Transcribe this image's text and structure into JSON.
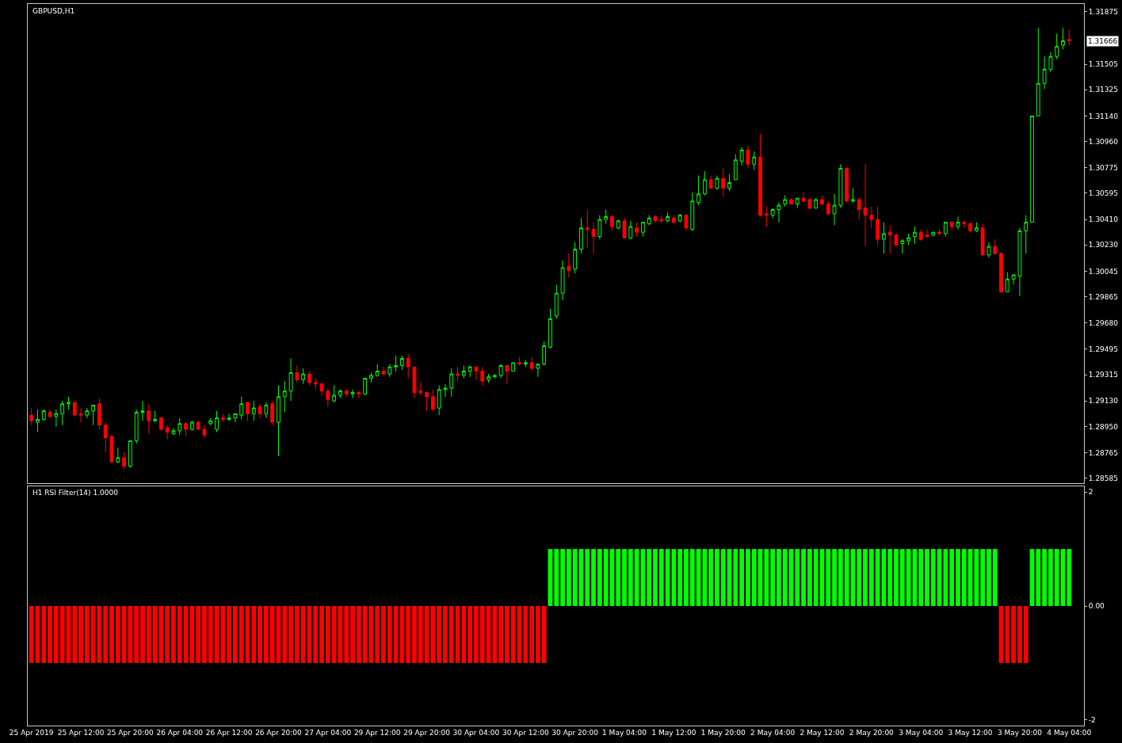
{
  "chart_data": [
    {
      "type": "candlestick",
      "title": "GBPUSD,H1",
      "tick_labels": "y",
      "categories": [
        null,
        null,
        null,
        null,
        null,
        null,
        null,
        null,
        null,
        null,
        null,
        null,
        null,
        null,
        null,
        null,
        null,
        null,
        null,
        null,
        null,
        null,
        null,
        null,
        null,
        null,
        null,
        null,
        null,
        null,
        null,
        null,
        null,
        null,
        null,
        null,
        null,
        null,
        null,
        null,
        null,
        null,
        null,
        null,
        null,
        null,
        null,
        null,
        null,
        null,
        null,
        null,
        null,
        null,
        null,
        null,
        null,
        null,
        null,
        null,
        null,
        null,
        null,
        null,
        null,
        null,
        null,
        null,
        null,
        null,
        null,
        null,
        null,
        null,
        null,
        null,
        null,
        null,
        null,
        null,
        null,
        null,
        null,
        null,
        null,
        null,
        null,
        null,
        null,
        null,
        null,
        null,
        null,
        null,
        null,
        null,
        null,
        null,
        null,
        null,
        null,
        null,
        null,
        null,
        null,
        null,
        null,
        null,
        null,
        null,
        null,
        null,
        null,
        null,
        null,
        null,
        null,
        null,
        null,
        null,
        null,
        null,
        null,
        null,
        null,
        null,
        null,
        null,
        null,
        null,
        null,
        null,
        null,
        null,
        null,
        null,
        null,
        null,
        null,
        null,
        null,
        null,
        null,
        null,
        null,
        null,
        null,
        null,
        null,
        null,
        null,
        null,
        null,
        null,
        null,
        null,
        null,
        null,
        null,
        null,
        null,
        null,
        null,
        null,
        null,
        null,
        null,
        null,
        null
      ],
      "ohlc": [
        [
          1.2903,
          1.2908,
          1.2896,
          1.2899
        ],
        [
          1.2898,
          1.2907,
          1.2891,
          1.29
        ],
        [
          1.29,
          1.2907,
          1.2899,
          1.2906
        ],
        [
          1.2905,
          1.2907,
          1.2901,
          1.2902
        ],
        [
          1.2902,
          1.2907,
          1.2895,
          1.2904
        ],
        [
          1.2904,
          1.2913,
          1.2896,
          1.2911
        ],
        [
          1.2911,
          1.2916,
          1.2907,
          1.2912
        ],
        [
          1.2912,
          1.2912,
          1.2902,
          1.2903
        ],
        [
          1.2904,
          1.2908,
          1.2898,
          1.2903
        ],
        [
          1.2903,
          1.2908,
          1.2901,
          1.2906
        ],
        [
          1.2906,
          1.291,
          1.2896,
          1.291
        ],
        [
          1.2911,
          1.2915,
          1.2893,
          1.2896
        ],
        [
          1.2896,
          1.2898,
          1.2877,
          1.2887
        ],
        [
          1.2888,
          1.2889,
          1.287,
          1.287
        ],
        [
          1.287,
          1.288,
          1.2869,
          1.2873
        ],
        [
          1.2873,
          1.2877,
          1.2865,
          1.2867
        ],
        [
          1.2867,
          1.2885,
          1.2866,
          1.2885
        ],
        [
          1.2885,
          1.2907,
          1.2883,
          1.2905
        ],
        [
          1.2905,
          1.2913,
          1.2899,
          1.2906
        ],
        [
          1.2906,
          1.2911,
          1.289,
          1.2899
        ],
        [
          1.2899,
          1.2906,
          1.2898,
          1.29
        ],
        [
          1.2901,
          1.2902,
          1.2892,
          1.2893
        ],
        [
          1.2894,
          1.2896,
          1.2886,
          1.2891
        ],
        [
          1.289,
          1.2894,
          1.2889,
          1.2892
        ],
        [
          1.2892,
          1.2901,
          1.2889,
          1.2897
        ],
        [
          1.2897,
          1.2898,
          1.2888,
          1.2893
        ],
        [
          1.2893,
          1.2899,
          1.2892,
          1.2898
        ],
        [
          1.2898,
          1.2899,
          1.2893,
          1.2893
        ],
        [
          1.2893,
          1.2896,
          1.2887,
          1.2889
        ],
        [
          1.2897,
          1.2901,
          1.2896,
          1.2899
        ],
        [
          1.2893,
          1.2906,
          1.2891,
          1.2901
        ],
        [
          1.2901,
          1.2904,
          1.2898,
          1.29
        ],
        [
          1.29,
          1.2904,
          1.2899,
          1.2901
        ],
        [
          1.2901,
          1.2904,
          1.2898,
          1.2904
        ],
        [
          1.2903,
          1.2916,
          1.29,
          1.2911
        ],
        [
          1.2912,
          1.2912,
          1.2899,
          1.2904
        ],
        [
          1.2904,
          1.2913,
          1.2899,
          1.2908
        ],
        [
          1.2909,
          1.2911,
          1.2901,
          1.2904
        ],
        [
          1.2904,
          1.2912,
          1.2901,
          1.291
        ],
        [
          1.2911,
          1.2913,
          1.2896,
          1.2898
        ],
        [
          1.2898,
          1.2924,
          1.2874,
          1.2916
        ],
        [
          1.2916,
          1.2927,
          1.2905,
          1.292
        ],
        [
          1.292,
          1.2943,
          1.2913,
          1.2933
        ],
        [
          1.2933,
          1.2938,
          1.2926,
          1.2928
        ],
        [
          1.2928,
          1.2936,
          1.2925,
          1.2932
        ],
        [
          1.2932,
          1.2934,
          1.2924,
          1.2926
        ],
        [
          1.2926,
          1.2929,
          1.2921,
          1.2925
        ],
        [
          1.2925,
          1.2926,
          1.2917,
          1.292
        ],
        [
          1.292,
          1.2922,
          1.2909,
          1.2914
        ],
        [
          1.2913,
          1.2924,
          1.2912,
          1.2917
        ],
        [
          1.2917,
          1.2921,
          1.2915,
          1.292
        ],
        [
          1.292,
          1.2921,
          1.2916,
          1.2918
        ],
        [
          1.2918,
          1.2921,
          1.2915,
          1.2919
        ],
        [
          1.2919,
          1.292,
          1.2915,
          1.2918
        ],
        [
          1.2918,
          1.2929,
          1.2917,
          1.2929
        ],
        [
          1.2929,
          1.2933,
          1.2926,
          1.2931
        ],
        [
          1.2931,
          1.2939,
          1.293,
          1.2934
        ],
        [
          1.2934,
          1.2937,
          1.2931,
          1.2932
        ],
        [
          1.2932,
          1.2939,
          1.293,
          1.2937
        ],
        [
          1.2937,
          1.2945,
          1.2934,
          1.2938
        ],
        [
          1.2938,
          1.2945,
          1.2935,
          1.2943
        ],
        [
          1.2943,
          1.2946,
          1.2929,
          1.2937
        ],
        [
          1.2937,
          1.2937,
          1.2915,
          1.2919
        ],
        [
          1.292,
          1.2926,
          1.2917,
          1.2919
        ],
        [
          1.2919,
          1.2919,
          1.2906,
          1.2916
        ],
        [
          1.2916,
          1.2921,
          1.2906,
          1.2907
        ],
        [
          1.2908,
          1.2924,
          1.2903,
          1.2921
        ],
        [
          1.2921,
          1.2925,
          1.2916,
          1.2922
        ],
        [
          1.2922,
          1.2936,
          1.2916,
          1.2932
        ],
        [
          1.2932,
          1.2937,
          1.2927,
          1.2931
        ],
        [
          1.2931,
          1.2938,
          1.2929,
          1.2934
        ],
        [
          1.2934,
          1.2938,
          1.293,
          1.2937
        ],
        [
          1.2937,
          1.2937,
          1.2928,
          1.2934
        ],
        [
          1.2934,
          1.2937,
          1.2924,
          1.2927
        ],
        [
          1.2928,
          1.2932,
          1.2926,
          1.293
        ],
        [
          1.293,
          1.2932,
          1.2929,
          1.2931
        ],
        [
          1.2931,
          1.2939,
          1.2929,
          1.2938
        ],
        [
          1.2938,
          1.2938,
          1.2925,
          1.2934
        ],
        [
          1.2934,
          1.294,
          1.2934,
          1.294
        ],
        [
          1.294,
          1.2944,
          1.2938,
          1.2939
        ],
        [
          1.2939,
          1.2942,
          1.2937,
          1.294
        ],
        [
          1.294,
          1.2944,
          1.2934,
          1.2936
        ],
        [
          1.2936,
          1.2939,
          1.293,
          1.2939
        ],
        [
          1.2939,
          1.2955,
          1.2938,
          1.2952
        ],
        [
          1.2951,
          1.2978,
          1.295,
          1.2971
        ],
        [
          1.2973,
          1.2995,
          1.2971,
          1.2989
        ],
        [
          1.2989,
          1.3012,
          1.2984,
          1.3007
        ],
        [
          1.3008,
          1.3017,
          1.3,
          1.3005
        ],
        [
          1.3006,
          1.3025,
          1.3003,
          1.302
        ],
        [
          1.302,
          1.3042,
          1.3017,
          1.3035
        ],
        [
          1.3035,
          1.3048,
          1.3021,
          1.3034
        ],
        [
          1.3034,
          1.3039,
          1.3017,
          1.3029
        ],
        [
          1.3029,
          1.3044,
          1.3027,
          1.3041
        ],
        [
          1.3041,
          1.3048,
          1.3038,
          1.3043
        ],
        [
          1.3043,
          1.3044,
          1.3033,
          1.3036
        ],
        [
          1.3035,
          1.3041,
          1.3034,
          1.304
        ],
        [
          1.304,
          1.3042,
          1.3028,
          1.3028
        ],
        [
          1.3028,
          1.304,
          1.3027,
          1.3036
        ],
        [
          1.3035,
          1.3039,
          1.3029,
          1.3032
        ],
        [
          1.3032,
          1.3039,
          1.3029,
          1.3039
        ],
        [
          1.3038,
          1.3044,
          1.3037,
          1.3042
        ],
        [
          1.3043,
          1.3044,
          1.3039,
          1.304
        ],
        [
          1.3041,
          1.3044,
          1.3038,
          1.304
        ],
        [
          1.304,
          1.3046,
          1.3039,
          1.3043
        ],
        [
          1.3042,
          1.3044,
          1.3038,
          1.3039
        ],
        [
          1.304,
          1.3045,
          1.3039,
          1.3044
        ],
        [
          1.3044,
          1.3045,
          1.3033,
          1.3035
        ],
        [
          1.3034,
          1.306,
          1.3033,
          1.3054
        ],
        [
          1.3053,
          1.3072,
          1.3051,
          1.3059
        ],
        [
          1.3059,
          1.3075,
          1.3058,
          1.3069
        ],
        [
          1.3069,
          1.3072,
          1.3063,
          1.3063
        ],
        [
          1.3063,
          1.3072,
          1.3062,
          1.307
        ],
        [
          1.307,
          1.3077,
          1.3057,
          1.3063
        ],
        [
          1.3063,
          1.3073,
          1.3061,
          1.3067
        ],
        [
          1.3069,
          1.3087,
          1.3069,
          1.3083
        ],
        [
          1.3082,
          1.3092,
          1.3079,
          1.309
        ],
        [
          1.309,
          1.3093,
          1.3077,
          1.308
        ],
        [
          1.308,
          1.3089,
          1.3076,
          1.3085
        ],
        [
          1.3085,
          1.3101,
          1.3043,
          1.3044
        ],
        [
          1.3045,
          1.305,
          1.3036,
          1.3044
        ],
        [
          1.3044,
          1.3049,
          1.3042,
          1.3048
        ],
        [
          1.3048,
          1.3053,
          1.3039,
          1.3051
        ],
        [
          1.3052,
          1.3058,
          1.305,
          1.3055
        ],
        [
          1.3055,
          1.3056,
          1.3052,
          1.3052
        ],
        [
          1.3052,
          1.3056,
          1.3049,
          1.3056
        ],
        [
          1.3056,
          1.306,
          1.3053,
          1.3054
        ],
        [
          1.3055,
          1.3056,
          1.3048,
          1.3049
        ],
        [
          1.3049,
          1.3056,
          1.3049,
          1.3055
        ],
        [
          1.3055,
          1.3058,
          1.3051,
          1.3052
        ],
        [
          1.3052,
          1.3054,
          1.3044,
          1.3045
        ],
        [
          1.3045,
          1.3059,
          1.3037,
          1.3051
        ],
        [
          1.3051,
          1.308,
          1.3049,
          1.3077
        ],
        [
          1.3077,
          1.3078,
          1.3053,
          1.3054
        ],
        [
          1.3054,
          1.3063,
          1.3053,
          1.3055
        ],
        [
          1.3055,
          1.3056,
          1.3041,
          1.3048
        ],
        [
          1.3049,
          1.308,
          1.3022,
          1.3044
        ],
        [
          1.3044,
          1.305,
          1.3035,
          1.3041
        ],
        [
          1.3041,
          1.305,
          1.3023,
          1.3027
        ],
        [
          1.3027,
          1.3039,
          1.3017,
          1.3031
        ],
        [
          1.3032,
          1.3037,
          1.3017,
          1.303
        ],
        [
          1.303,
          1.3031,
          1.3022,
          1.3023
        ],
        [
          1.3024,
          1.3027,
          1.3017,
          1.3026
        ],
        [
          1.3026,
          1.3031,
          1.3023,
          1.3028
        ],
        [
          1.3029,
          1.3036,
          1.3024,
          1.3032
        ],
        [
          1.3032,
          1.3034,
          1.3026,
          1.3027
        ],
        [
          1.303,
          1.3034,
          1.3028,
          1.3029
        ],
        [
          1.303,
          1.3032,
          1.3029,
          1.3032
        ],
        [
          1.3032,
          1.3034,
          1.303,
          1.3031
        ],
        [
          1.3031,
          1.3039,
          1.3029,
          1.3039
        ],
        [
          1.3039,
          1.304,
          1.3033,
          1.3036
        ],
        [
          1.3036,
          1.3043,
          1.3034,
          1.3039
        ],
        [
          1.3039,
          1.304,
          1.3035,
          1.3038
        ],
        [
          1.3038,
          1.3039,
          1.3032,
          1.3033
        ],
        [
          1.3033,
          1.3039,
          1.3032,
          1.3035
        ],
        [
          1.3035,
          1.3038,
          1.3015,
          1.3016
        ],
        [
          1.3016,
          1.3025,
          1.3014,
          1.3022
        ],
        [
          1.3022,
          1.3027,
          1.3016,
          1.3017
        ],
        [
          1.3017,
          1.3018,
          1.2989,
          1.299
        ],
        [
          1.299,
          1.3004,
          1.299,
          1.2999
        ],
        [
          1.2999,
          1.3002,
          1.2995,
          1.3002
        ],
        [
          1.3001,
          1.3035,
          1.2987,
          1.3033
        ],
        [
          1.3033,
          1.3044,
          1.3017,
          1.3039
        ],
        [
          1.3039,
          1.3114,
          1.3039,
          1.3114
        ],
        [
          1.3114,
          1.3176,
          1.3114,
          1.3137
        ],
        [
          1.3137,
          1.3156,
          1.3133,
          1.3147
        ],
        [
          1.3147,
          1.3159,
          1.3145,
          1.3156
        ],
        [
          1.3156,
          1.3172,
          1.3154,
          1.3163
        ],
        [
          1.3164,
          1.3176,
          1.3161,
          1.3167
        ],
        [
          1.3168,
          1.3175,
          1.3164,
          1.3167
        ]
      ],
      "ylim": [
        1.2855,
        1.3193
      ],
      "yticks": [
        1.31875,
        1.31505,
        1.31325,
        {
          "value": 1.3114,
          "label": "1.31140"
        },
        {
          "value": 1.3096,
          "label": "1.30960"
        },
        1.30775,
        1.30595,
        {
          "value": 1.3041,
          "label": "1.30410"
        },
        {
          "value": 1.3023,
          "label": "1.30230"
        },
        1.30045,
        1.29865,
        {
          "value": 1.2968,
          "label": "1.29680"
        },
        1.29495,
        1.29315,
        {
          "value": 1.2913,
          "label": "1.29130"
        },
        {
          "value": 1.2895,
          "label": "1.28950"
        },
        1.28765,
        1.28585
      ],
      "annotations": [
        "1.31666"
      ]
    },
    {
      "type": "bar",
      "title": "H1 RSI Filter(14) 1.0000",
      "categories": [
        "25 Apr 2019",
        null,
        null,
        null,
        null,
        null,
        null,
        null,
        "25 Apr 12:00",
        null,
        null,
        null,
        null,
        null,
        null,
        null,
        "25 Apr 20:00",
        null,
        null,
        null,
        null,
        null,
        null,
        null,
        "26 Apr 04:00",
        null,
        null,
        null,
        null,
        null,
        null,
        null,
        "26 Apr 12:00",
        null,
        null,
        null,
        null,
        null,
        null,
        null,
        "26 Apr 20:00",
        null,
        null,
        null,
        null,
        null,
        null,
        null,
        "27 Apr 04:00",
        null,
        null,
        null,
        null,
        null,
        null,
        null,
        "29 Apr 12:00",
        null,
        null,
        null,
        null,
        null,
        null,
        null,
        "29 Apr 20:00",
        null,
        null,
        null,
        null,
        null,
        null,
        null,
        "30 Apr 04:00",
        null,
        null,
        null,
        null,
        null,
        null,
        null,
        "30 Apr 12:00",
        null,
        null,
        null,
        null,
        null,
        null,
        null,
        "30 Apr 20:00",
        null,
        null,
        null,
        null,
        null,
        null,
        null,
        "1 May 04:00",
        null,
        null,
        null,
        null,
        null,
        null,
        null,
        "1 May 12:00",
        null,
        null,
        null,
        null,
        null,
        null,
        null,
        "1 May 20:00",
        null,
        null,
        null,
        null,
        null,
        null,
        null,
        "2 May 04:00",
        null,
        null,
        null,
        null,
        null,
        null,
        null,
        "2 May 12:00",
        null,
        null,
        null,
        null,
        null,
        null,
        null,
        "2 May 20:00",
        null,
        null,
        null,
        null,
        null,
        null,
        null,
        "3 May 04:00",
        null,
        null,
        null,
        null,
        null,
        null,
        null,
        "3 May 12:00",
        null,
        null,
        null,
        null,
        null,
        null,
        null,
        "3 May 20:00",
        null,
        null,
        null,
        null,
        null,
        null,
        null,
        "4 May 04:00"
      ],
      "series": [
        {
          "color": "#ff0000",
          "values": [
            -1,
            -1,
            -1,
            -1,
            -1,
            -1,
            -1,
            -1,
            -1,
            -1,
            -1,
            -1,
            -1,
            -1,
            -1,
            -1,
            -1,
            -1,
            -1,
            -1,
            -1,
            -1,
            -1,
            -1,
            -1,
            -1,
            -1,
            -1,
            -1,
            -1,
            -1,
            -1,
            -1,
            -1,
            -1,
            -1,
            -1,
            -1,
            -1,
            -1,
            -1,
            -1,
            -1,
            -1,
            -1,
            -1,
            -1,
            -1,
            -1,
            -1,
            -1,
            -1,
            -1,
            -1,
            -1,
            -1,
            -1,
            -1,
            -1,
            -1,
            -1,
            -1,
            -1,
            -1,
            -1,
            -1,
            -1,
            -1,
            -1,
            -1,
            -1,
            -1,
            -1,
            -1,
            -1,
            -1,
            -1,
            -1,
            -1,
            -1,
            -1,
            -1,
            -1,
            -1,
            null,
            null,
            null,
            null,
            null,
            null,
            null,
            null,
            null,
            null,
            null,
            null,
            null,
            null,
            null,
            null,
            null,
            null,
            null,
            null,
            null,
            null,
            null,
            null,
            null,
            null,
            null,
            null,
            null,
            null,
            null,
            null,
            null,
            null,
            null,
            null,
            null,
            null,
            null,
            null,
            null,
            null,
            null,
            null,
            null,
            null,
            null,
            null,
            null,
            null,
            null,
            null,
            null,
            null,
            null,
            null,
            null,
            null,
            null,
            null,
            null,
            null,
            null,
            null,
            null,
            null,
            null,
            null,
            null,
            null,
            null,
            null,
            null,
            -1,
            -1,
            -1,
            -1,
            -1,
            null,
            null,
            null,
            null,
            null,
            null,
            null
          ]
        },
        {
          "color": "#00ff00",
          "values": [
            null,
            null,
            null,
            null,
            null,
            null,
            null,
            null,
            null,
            null,
            null,
            null,
            null,
            null,
            null,
            null,
            null,
            null,
            null,
            null,
            null,
            null,
            null,
            null,
            null,
            null,
            null,
            null,
            null,
            null,
            null,
            null,
            null,
            null,
            null,
            null,
            null,
            null,
            null,
            null,
            null,
            null,
            null,
            null,
            null,
            null,
            null,
            null,
            null,
            null,
            null,
            null,
            null,
            null,
            null,
            null,
            null,
            null,
            null,
            null,
            null,
            null,
            null,
            null,
            null,
            null,
            null,
            null,
            null,
            null,
            null,
            null,
            null,
            null,
            null,
            null,
            null,
            null,
            null,
            null,
            null,
            null,
            null,
            null,
            1,
            1,
            1,
            1,
            1,
            1,
            1,
            1,
            1,
            1,
            1,
            1,
            1,
            1,
            1,
            1,
            1,
            1,
            1,
            1,
            1,
            1,
            1,
            1,
            1,
            1,
            1,
            1,
            1,
            1,
            1,
            1,
            1,
            1,
            1,
            1,
            1,
            1,
            1,
            1,
            1,
            1,
            1,
            1,
            1,
            1,
            1,
            1,
            1,
            1,
            1,
            1,
            1,
            1,
            1,
            1,
            1,
            1,
            1,
            1,
            1,
            1,
            1,
            1,
            1,
            1,
            1,
            1,
            1,
            1,
            1,
            1,
            1,
            null,
            null,
            null,
            null,
            null,
            1,
            1,
            1,
            1,
            1,
            1,
            1
          ]
        }
      ],
      "ylim": [
        -2.1,
        2.1
      ],
      "yticks": [
        2,
        {
          "value": 0,
          "label": "0.00"
        },
        -2
      ]
    }
  ]
}
